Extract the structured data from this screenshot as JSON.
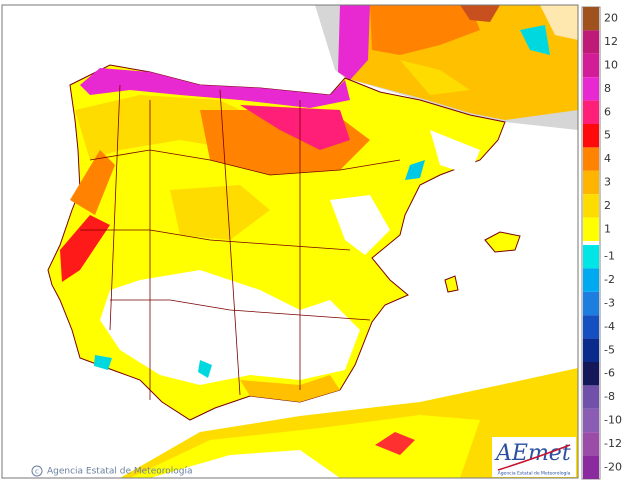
{
  "map": {
    "credit": "Agencia Estatal de Meteorología",
    "logo": {
      "name": "AEmet",
      "subtitle": "Agencia Estatal de Meteorología"
    },
    "legend": [
      {
        "label": "20",
        "color": "#a0521e"
      },
      {
        "label": "12",
        "color": "#c01a78"
      },
      {
        "label": "10",
        "color": "#d21c98"
      },
      {
        "label": "8",
        "color": "#e828d0"
      },
      {
        "label": "6",
        "color": "#ff1e78"
      },
      {
        "label": "5",
        "color": "#ff0a0a"
      },
      {
        "label": "4",
        "color": "#ff8200"
      },
      {
        "label": "3",
        "color": "#ffb400"
      },
      {
        "label": "2",
        "color": "#ffdc00"
      },
      {
        "label": "1",
        "color": "#ffff00"
      },
      {
        "label": "-1",
        "color": "#00e6e6"
      },
      {
        "label": "-2",
        "color": "#00aaf0"
      },
      {
        "label": "-3",
        "color": "#1e7ee0"
      },
      {
        "label": "-4",
        "color": "#1450c0"
      },
      {
        "label": "-5",
        "color": "#0a2a8c"
      },
      {
        "label": "-6",
        "color": "#14185a"
      },
      {
        "label": "-8",
        "color": "#7050a8"
      },
      {
        "label": "-10",
        "color": "#8a5cb4"
      },
      {
        "label": "-12",
        "color": "#9a4ca8"
      },
      {
        "label": "-20",
        "color": "#8a2a9e"
      }
    ]
  }
}
